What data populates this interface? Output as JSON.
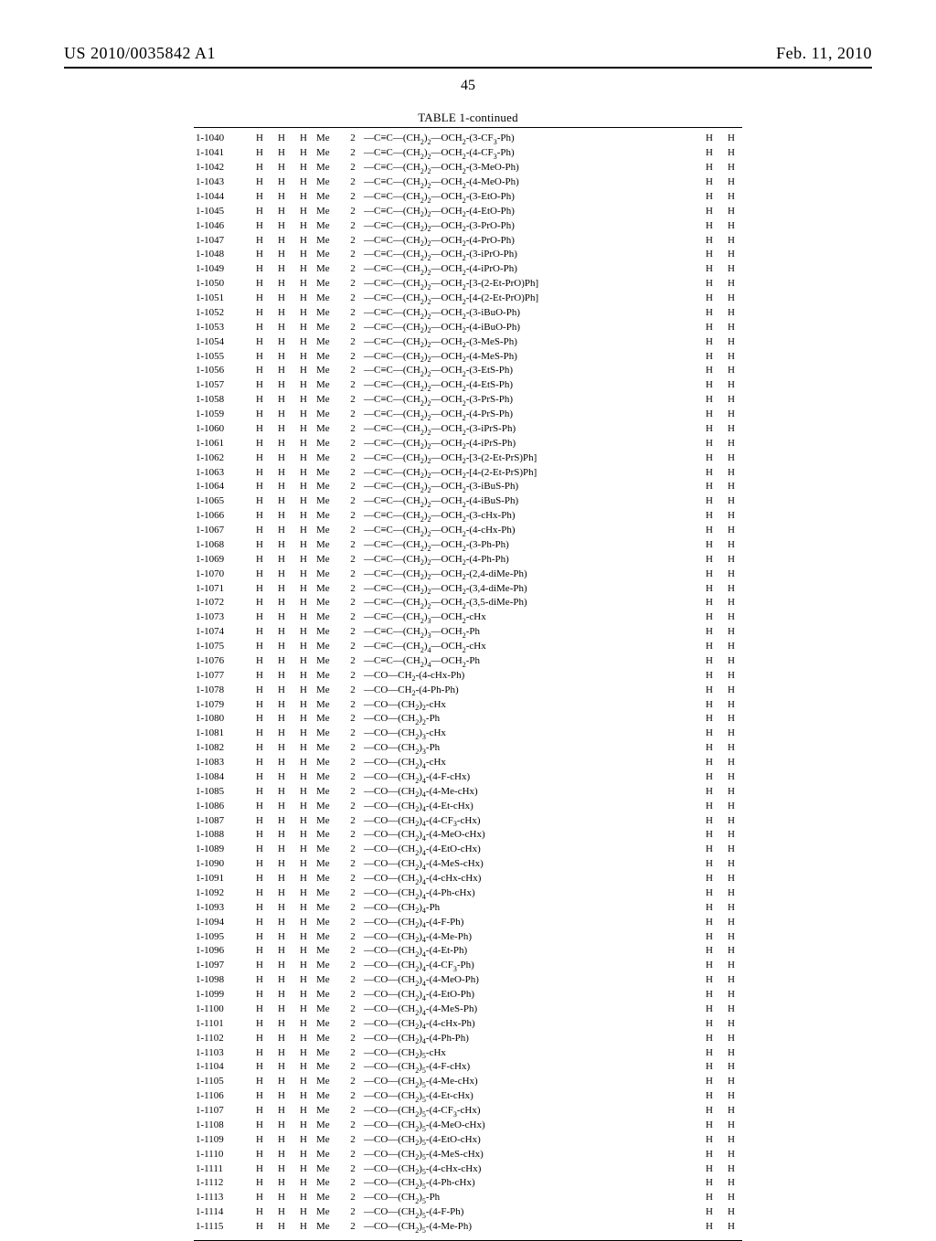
{
  "header": {
    "left": "US 2010/0035842 A1",
    "right": "Feb. 11, 2010"
  },
  "pageNumber": "45",
  "tableCaption": "TABLE 1-continued",
  "defaults": {
    "c1": "H",
    "c2": "H",
    "c3": "H",
    "c4": "Me",
    "c5": "2",
    "c7": "H",
    "c8": "H"
  },
  "rows": [
    {
      "id": "1-1040",
      "c6": "—C≡C—(CH₂)₂—OCH₂-(3-CF₃-Ph)"
    },
    {
      "id": "1-1041",
      "c6": "—C≡C—(CH₂)₂—OCH₂-(4-CF₃-Ph)"
    },
    {
      "id": "1-1042",
      "c6": "—C≡C—(CH₂)₂—OCH₂-(3-MeO-Ph)"
    },
    {
      "id": "1-1043",
      "c6": "—C≡C—(CH₂)₂—OCH₂-(4-MeO-Ph)"
    },
    {
      "id": "1-1044",
      "c6": "—C≡C—(CH₂)₂—OCH₂-(3-EtO-Ph)"
    },
    {
      "id": "1-1045",
      "c6": "—C≡C—(CH₂)₂—OCH₂-(4-EtO-Ph)"
    },
    {
      "id": "1-1046",
      "c6": "—C≡C—(CH₂)₂—OCH₂-(3-PrO-Ph)"
    },
    {
      "id": "1-1047",
      "c6": "—C≡C—(CH₂)₂—OCH₂-(4-PrO-Ph)"
    },
    {
      "id": "1-1048",
      "c6": "—C≡C—(CH₂)₂—OCH₂-(3-iPrO-Ph)"
    },
    {
      "id": "1-1049",
      "c6": "—C≡C—(CH₂)₂—OCH₂-(4-iPrO-Ph)"
    },
    {
      "id": "1-1050",
      "c6": "—C≡C—(CH₂)₂—OCH₂-[3-(2-Et-PrO)Ph]"
    },
    {
      "id": "1-1051",
      "c6": "—C≡C—(CH₂)₂—OCH₂-[4-(2-Et-PrO)Ph]"
    },
    {
      "id": "1-1052",
      "c6": "—C≡C—(CH₂)₂—OCH₂-(3-iBuO-Ph)"
    },
    {
      "id": "1-1053",
      "c6": "—C≡C—(CH₂)₂—OCH₂-(4-iBuO-Ph)"
    },
    {
      "id": "1-1054",
      "c6": "—C≡C—(CH₂)₂—OCH₂-(3-MeS-Ph)"
    },
    {
      "id": "1-1055",
      "c6": "—C≡C—(CH₂)₂—OCH₂-(4-MeS-Ph)"
    },
    {
      "id": "1-1056",
      "c6": "—C≡C—(CH₂)₂—OCH₂-(3-EtS-Ph)"
    },
    {
      "id": "1-1057",
      "c6": "—C≡C—(CH₂)₂—OCH₂-(4-EtS-Ph)"
    },
    {
      "id": "1-1058",
      "c6": "—C≡C—(CH₂)₂—OCH₂-(3-PrS-Ph)"
    },
    {
      "id": "1-1059",
      "c6": "—C≡C—(CH₂)₂—OCH₂-(4-PrS-Ph)"
    },
    {
      "id": "1-1060",
      "c6": "—C≡C—(CH₂)₂—OCH₂-(3-iPrS-Ph)"
    },
    {
      "id": "1-1061",
      "c6": "—C≡C—(CH₂)₂—OCH₂-(4-iPrS-Ph)"
    },
    {
      "id": "1-1062",
      "c6": "—C≡C—(CH₂)₂—OCH₂-[3-(2-Et-PrS)Ph]"
    },
    {
      "id": "1-1063",
      "c6": "—C≡C—(CH₂)₂—OCH₂-[4-(2-Et-PrS)Ph]"
    },
    {
      "id": "1-1064",
      "c6": "—C≡C—(CH₂)₂—OCH₂-(3-iBuS-Ph)"
    },
    {
      "id": "1-1065",
      "c6": "—C≡C—(CH₂)₂—OCH₂-(4-iBuS-Ph)"
    },
    {
      "id": "1-1066",
      "c6": "—C≡C—(CH₂)₂—OCH₂-(3-cHx-Ph)"
    },
    {
      "id": "1-1067",
      "c6": "—C≡C—(CH₂)₂—OCH₂-(4-cHx-Ph)"
    },
    {
      "id": "1-1068",
      "c6": "—C≡C—(CH₂)₂—OCH₂-(3-Ph-Ph)"
    },
    {
      "id": "1-1069",
      "c6": "—C≡C—(CH₂)₂—OCH₂-(4-Ph-Ph)"
    },
    {
      "id": "1-1070",
      "c6": "—C≡C—(CH₂)₂—OCH₂-(2,4-diMe-Ph)"
    },
    {
      "id": "1-1071",
      "c6": "—C≡C—(CH₂)₂—OCH₂-(3,4-diMe-Ph)"
    },
    {
      "id": "1-1072",
      "c6": "—C≡C—(CH₂)₂—OCH₂-(3,5-diMe-Ph)"
    },
    {
      "id": "1-1073",
      "c6": "—C≡C—(CH₂)₃—OCH₂-cHx"
    },
    {
      "id": "1-1074",
      "c6": "—C≡C—(CH₂)₃—OCH₂-Ph"
    },
    {
      "id": "1-1075",
      "c6": "—C≡C—(CH₂)₄—OCH₂-cHx"
    },
    {
      "id": "1-1076",
      "c6": "—C≡C—(CH₂)₄—OCH₂-Ph"
    },
    {
      "id": "1-1077",
      "c6": "—CO—CH₂-(4-cHx-Ph)"
    },
    {
      "id": "1-1078",
      "c6": "—CO—CH₂-(4-Ph-Ph)"
    },
    {
      "id": "1-1079",
      "c6": "—CO—(CH₂)₂-cHx"
    },
    {
      "id": "1-1080",
      "c6": "—CO—(CH₂)₂-Ph"
    },
    {
      "id": "1-1081",
      "c6": "—CO—(CH₂)₃-cHx"
    },
    {
      "id": "1-1082",
      "c6": "—CO—(CH₂)₃-Ph"
    },
    {
      "id": "1-1083",
      "c6": "—CO—(CH₂)₄-cHx"
    },
    {
      "id": "1-1084",
      "c6": "—CO—(CH₂)₄-(4-F-cHx)"
    },
    {
      "id": "1-1085",
      "c6": "—CO—(CH₂)₄-(4-Me-cHx)"
    },
    {
      "id": "1-1086",
      "c6": "—CO—(CH₂)₄-(4-Et-cHx)"
    },
    {
      "id": "1-1087",
      "c6": "—CO—(CH₂)₄-(4-CF₃-cHx)"
    },
    {
      "id": "1-1088",
      "c6": "—CO—(CH₂)₄-(4-MeO-cHx)"
    },
    {
      "id": "1-1089",
      "c6": "—CO—(CH₂)₄-(4-EtO-cHx)"
    },
    {
      "id": "1-1090",
      "c6": "—CO—(CH₂)₄-(4-MeS-cHx)"
    },
    {
      "id": "1-1091",
      "c6": "—CO—(CH₂)₄-(4-cHx-cHx)"
    },
    {
      "id": "1-1092",
      "c6": "—CO—(CH₂)₄-(4-Ph-cHx)"
    },
    {
      "id": "1-1093",
      "c6": "—CO—(CH₂)₄-Ph"
    },
    {
      "id": "1-1094",
      "c6": "—CO—(CH₂)₄-(4-F-Ph)"
    },
    {
      "id": "1-1095",
      "c6": "—CO—(CH₂)₄-(4-Me-Ph)"
    },
    {
      "id": "1-1096",
      "c6": "—CO—(CH₂)₄-(4-Et-Ph)"
    },
    {
      "id": "1-1097",
      "c6": "—CO—(CH₂)₄-(4-CF₃-Ph)"
    },
    {
      "id": "1-1098",
      "c6": "—CO—(CH₂)₄-(4-MeO-Ph)"
    },
    {
      "id": "1-1099",
      "c6": "—CO—(CH₂)₄-(4-EtO-Ph)"
    },
    {
      "id": "1-1100",
      "c6": "—CO—(CH₂)₄-(4-MeS-Ph)"
    },
    {
      "id": "1-1101",
      "c6": "—CO—(CH₂)₄-(4-cHx-Ph)"
    },
    {
      "id": "1-1102",
      "c6": "—CO—(CH₂)₄-(4-Ph-Ph)"
    },
    {
      "id": "1-1103",
      "c6": "—CO—(CH₂)₅-cHx"
    },
    {
      "id": "1-1104",
      "c6": "—CO—(CH₂)₅-(4-F-cHx)"
    },
    {
      "id": "1-1105",
      "c6": "—CO—(CH₂)₅-(4-Me-cHx)"
    },
    {
      "id": "1-1106",
      "c6": "—CO—(CH₂)₅-(4-Et-cHx)"
    },
    {
      "id": "1-1107",
      "c6": "—CO—(CH₂)₅-(4-CF₃-cHx)"
    },
    {
      "id": "1-1108",
      "c6": "—CO—(CH₂)₅-(4-MeO-cHx)"
    },
    {
      "id": "1-1109",
      "c6": "—CO—(CH₂)₅-(4-EtO-cHx)"
    },
    {
      "id": "1-1110",
      "c6": "—CO—(CH₂)₅-(4-MeS-cHx)"
    },
    {
      "id": "1-1111",
      "c6": "—CO—(CH₂)₅-(4-cHx-cHx)"
    },
    {
      "id": "1-1112",
      "c6": "—CO—(CH₂)₅-(4-Ph-cHx)"
    },
    {
      "id": "1-1113",
      "c6": "—CO—(CH₂)₅-Ph"
    },
    {
      "id": "1-1114",
      "c6": "—CO—(CH₂)₅-(4-F-Ph)"
    },
    {
      "id": "1-1115",
      "c6": "—CO—(CH₂)₅-(4-Me-Ph)"
    }
  ]
}
